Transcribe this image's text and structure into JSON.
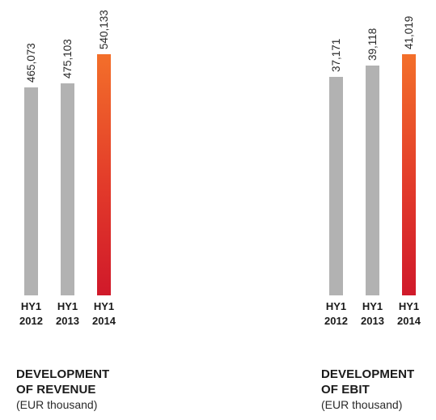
{
  "colors": {
    "bar": "#b2b2b2",
    "highlight_top": "#f36f2a",
    "highlight_bottom": "#d0192a"
  },
  "chart_data": [
    {
      "type": "bar",
      "categories": [
        [
          "HY1",
          "2012"
        ],
        [
          "HY1",
          "2013"
        ],
        [
          "HY1",
          "2014"
        ]
      ],
      "values": [
        465073,
        475103,
        540133
      ],
      "value_labels": [
        "465,073",
        "475,103",
        "540,133"
      ],
      "highlight_index": 2,
      "title_lines": [
        "DEVELOPMENT",
        "OF REVENUE"
      ],
      "unit": "(EUR thousand)",
      "ylim": [
        0,
        540133
      ]
    },
    {
      "type": "bar",
      "categories": [
        [
          "HY1",
          "2012"
        ],
        [
          "HY1",
          "2013"
        ],
        [
          "HY1",
          "2014"
        ]
      ],
      "values": [
        37171,
        39118,
        41019
      ],
      "value_labels": [
        "37,171",
        "39,118",
        "41,019"
      ],
      "highlight_index": 2,
      "title_lines": [
        "DEVELOPMENT",
        "OF EBIT"
      ],
      "unit": "(EUR thousand)",
      "ylim": [
        0,
        41019
      ]
    }
  ]
}
